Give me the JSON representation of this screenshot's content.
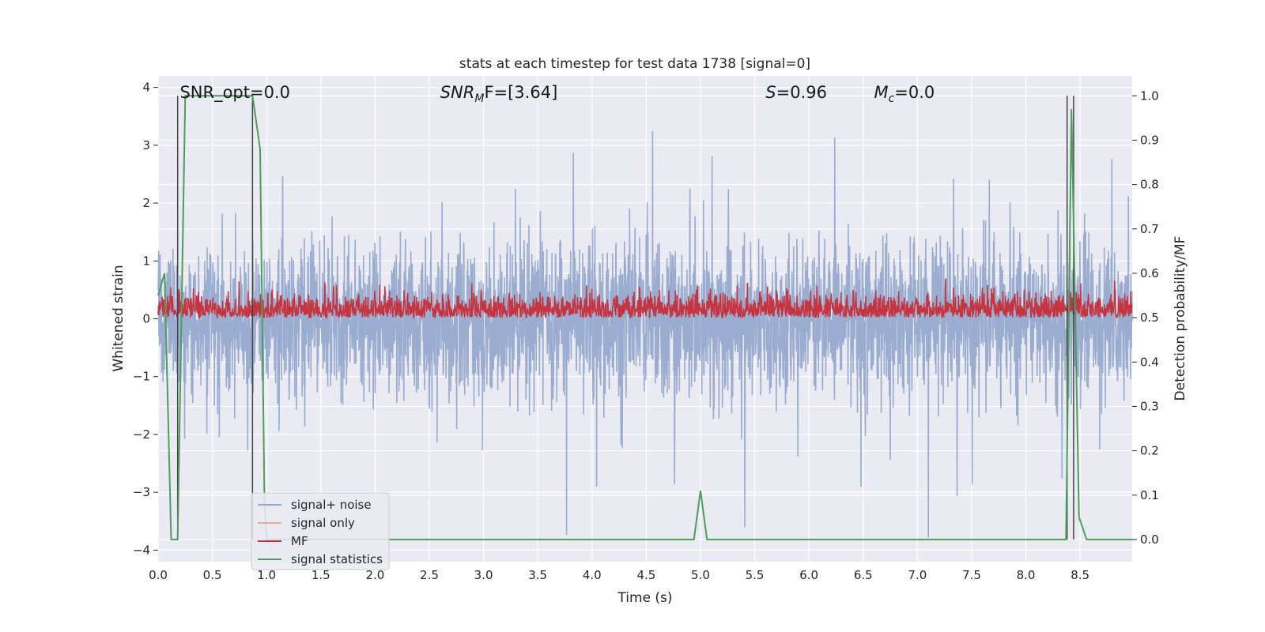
{
  "chart_data": {
    "type": "line",
    "title": "stats at each timestep for test data 1738 [signal=0]",
    "xlabel": "Time (s)",
    "ylabel": "Whitened strain",
    "y2label": "Detection probability/MF",
    "xlim": [
      0.0,
      8.98
    ],
    "ylim": [
      -4.2,
      4.2
    ],
    "y2lim": [
      -0.05,
      1.045
    ],
    "x_ticks": [
      "0.0",
      "0.5",
      "1.0",
      "1.5",
      "2.0",
      "2.5",
      "3.0",
      "3.5",
      "4.0",
      "4.5",
      "5.0",
      "5.5",
      "6.0",
      "6.5",
      "7.0",
      "7.5",
      "8.0",
      "8.5"
    ],
    "y_ticks": [
      "4",
      "3",
      "2",
      "1",
      "0",
      "−1",
      "−2",
      "−3",
      "−4"
    ],
    "y2_ticks": [
      "1.0",
      "0.9",
      "0.8",
      "0.7",
      "0.6",
      "0.5",
      "0.4",
      "0.3",
      "0.2",
      "0.1",
      "0.0"
    ],
    "grid": true,
    "legend_placement": "lower-left",
    "annotations": [
      {
        "text": "SNR_opt=0.0",
        "x": 0.2
      },
      {
        "text": "SNR",
        "sub": "M",
        "rest": "F=[3.64]",
        "x": 2.6
      },
      {
        "text": "S",
        "rest": "=0.96",
        "x": 5.6
      },
      {
        "text": "M",
        "sub": "c",
        "rest": "=0.0",
        "x": 6.6
      }
    ],
    "vlines": [
      0.18,
      0.87,
      8.38,
      8.44
    ],
    "series": [
      {
        "name": "signal+ noise",
        "color": "#97a9cf",
        "style": "noise",
        "amplitude_range": [
          -4.0,
          4.0
        ]
      },
      {
        "name": "signal only",
        "color": "#eea98c",
        "style": "flat",
        "values_y": [
          0,
          0
        ]
      },
      {
        "name": "MF",
        "color": "#c5343f",
        "style": "noise",
        "axis": "right",
        "range": [
          0.5,
          0.63
        ]
      },
      {
        "name": "signal statistics",
        "color": "#4d9e5b",
        "axis": "right",
        "x": [
          0.0,
          0.06,
          0.12,
          0.18,
          0.25,
          0.87,
          0.94,
          0.98,
          1.0,
          4.94,
          5.0,
          5.06,
          8.37,
          8.42,
          8.49,
          8.56,
          8.98
        ],
        "y": [
          0.55,
          0.6,
          0.0,
          0.0,
          1.0,
          1.0,
          0.88,
          0.1,
          0.0,
          0.0,
          0.11,
          0.0,
          0.0,
          0.97,
          0.05,
          0.0,
          0.0
        ]
      }
    ]
  },
  "legend": {
    "items": [
      "signal+ noise",
      "signal only",
      "MF",
      "signal statistics"
    ]
  }
}
